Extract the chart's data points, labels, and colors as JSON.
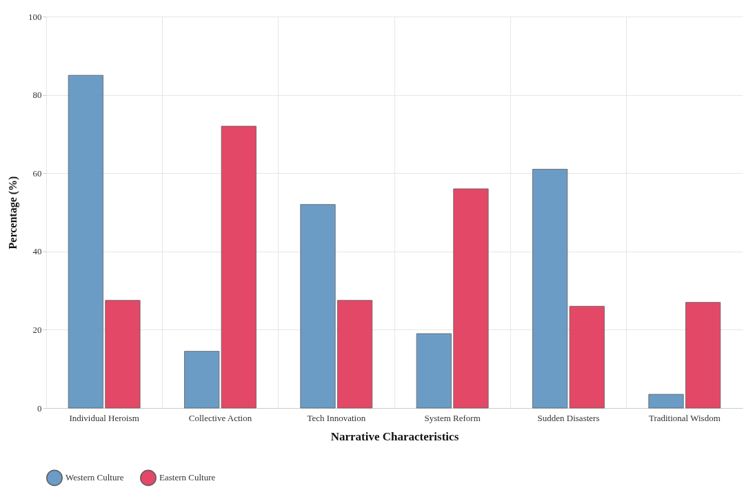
{
  "chart_data": {
    "type": "bar",
    "xlabel": "Narrative Characteristics",
    "ylabel": "Percentage (%)",
    "categories": [
      "Individual Heroism",
      "Collective Action",
      "Tech Innovation",
      "System Reform",
      "Sudden Disasters",
      "Traditional Wisdom"
    ],
    "series": [
      {
        "name": "Western Culture",
        "color": "#6497c3",
        "values": [
          85,
          14.5,
          52,
          19,
          61,
          3.5
        ]
      },
      {
        "name": "Eastern Culture",
        "color": "#e23f5f",
        "values": [
          27.5,
          72,
          27.5,
          56,
          26,
          27
        ]
      }
    ],
    "ylim": [
      0,
      100
    ],
    "yticks": [
      0,
      20,
      40,
      60,
      80,
      100
    ],
    "grid": true,
    "legend": "bottom"
  }
}
